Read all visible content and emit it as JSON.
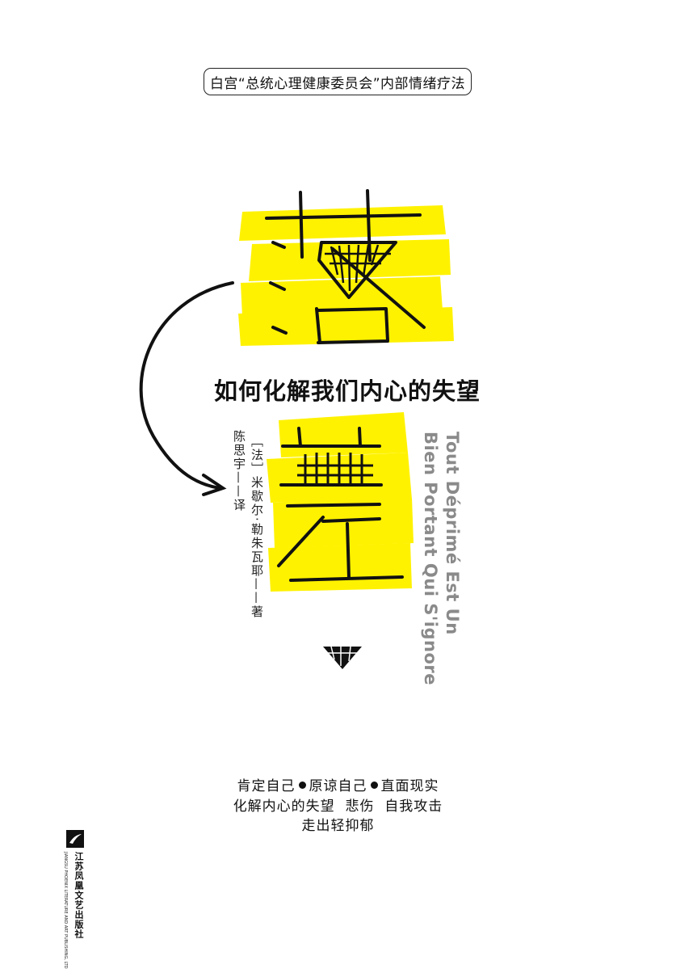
{
  "cover": {
    "series_label": "白宫“总统心理健康委员会”内部情绪疗法",
    "title": "落差",
    "subtitle": "如何化解我们内心的失望",
    "author_line": "［法］米歇尔·勒朱瓦耶——著",
    "translator_line": "陈思宇——译",
    "original_title_line1": "Tout Déprimé Est Un",
    "original_title_line2": "Bien Portant Qui S'ignore",
    "blurb": {
      "line1_a": "肯定自己",
      "line1_b": "原谅自己",
      "line1_c": "直面现实",
      "line2": "化解内心的失望  悲伤  自我攻击",
      "line3": "走出轻抑郁"
    },
    "publisher_cn": "江苏凤凰文艺出版社",
    "publisher_en": "JIANGSU PHOENIX LITERATURE AND ART PUBLISHING, LTD"
  },
  "colors": {
    "highlight": "#fff200",
    "ink": "#111111",
    "english_title": "#8a8a8a"
  }
}
